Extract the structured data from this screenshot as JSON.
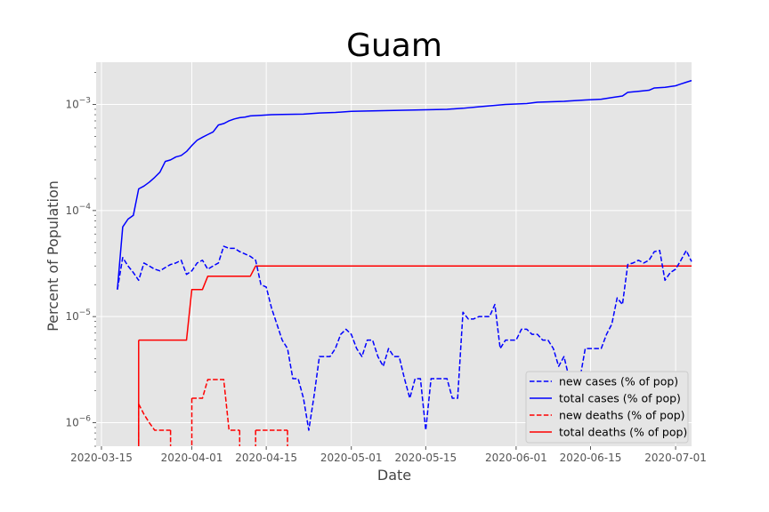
{
  "chart_data": {
    "type": "line",
    "title": "Guam",
    "xlabel": "Date",
    "ylabel": "Percent of Population",
    "yscale": "log",
    "ylim": [
      6e-07,
      0.0025
    ],
    "xlim": [
      "2020-03-14",
      "2020-07-04"
    ],
    "grid": true,
    "legend_position": "lower-right",
    "x_ticks": [
      "2020-03-15",
      "2020-04-01",
      "2020-04-15",
      "2020-05-01",
      "2020-05-15",
      "2020-06-01",
      "2020-06-15",
      "2020-07-01"
    ],
    "y_ticks": [
      {
        "value": 1e-06,
        "base": "10",
        "exp": "−6"
      },
      {
        "value": 1e-05,
        "base": "10",
        "exp": "−5"
      },
      {
        "value": 0.0001,
        "base": "10",
        "exp": "−4"
      },
      {
        "value": 0.001,
        "base": "10",
        "exp": "−3"
      }
    ],
    "series": [
      {
        "name": "new cases (% of pop)",
        "color": "#0000ff",
        "dash": "dashed",
        "points": [
          [
            "2020-03-18",
            1.8e-05
          ],
          [
            "2020-03-19",
            3.6e-05
          ],
          [
            "2020-03-20",
            3e-05
          ],
          [
            "2020-03-21",
            2.6e-05
          ],
          [
            "2020-03-22",
            2.2e-05
          ],
          [
            "2020-03-23",
            3.2e-05
          ],
          [
            "2020-03-24",
            3e-05
          ],
          [
            "2020-03-25",
            2.8e-05
          ],
          [
            "2020-03-26",
            2.7e-05
          ],
          [
            "2020-03-27",
            2.9e-05
          ],
          [
            "2020-03-28",
            3.1e-05
          ],
          [
            "2020-03-29",
            3.2e-05
          ],
          [
            "2020-03-30",
            3.4e-05
          ],
          [
            "2020-03-31",
            2.5e-05
          ],
          [
            "2020-04-01",
            2.7e-05
          ],
          [
            "2020-04-02",
            3.2e-05
          ],
          [
            "2020-04-03",
            3.4e-05
          ],
          [
            "2020-04-04",
            2.8e-05
          ],
          [
            "2020-04-05",
            3e-05
          ],
          [
            "2020-04-06",
            3.2e-05
          ],
          [
            "2020-04-07",
            4.6e-05
          ],
          [
            "2020-04-08",
            4.4e-05
          ],
          [
            "2020-04-09",
            4.4e-05
          ],
          [
            "2020-04-10",
            4.1e-05
          ],
          [
            "2020-04-11",
            3.9e-05
          ],
          [
            "2020-04-12",
            3.7e-05
          ],
          [
            "2020-04-13",
            3.4e-05
          ],
          [
            "2020-04-14",
            2e-05
          ],
          [
            "2020-04-15",
            1.9e-05
          ],
          [
            "2020-04-16",
            1.2e-05
          ],
          [
            "2020-04-17",
            8.5e-06
          ],
          [
            "2020-04-18",
            6e-06
          ],
          [
            "2020-04-19",
            5e-06
          ],
          [
            "2020-04-20",
            2.6e-06
          ],
          [
            "2020-04-21",
            2.6e-06
          ],
          [
            "2020-04-22",
            1.7e-06
          ],
          [
            "2020-04-23",
            8.5e-07
          ],
          [
            "2020-04-24",
            1.8e-06
          ],
          [
            "2020-04-25",
            4.2e-06
          ],
          [
            "2020-04-26",
            4.2e-06
          ],
          [
            "2020-04-27",
            4.2e-06
          ],
          [
            "2020-04-28",
            5e-06
          ],
          [
            "2020-04-29",
            6.8e-06
          ],
          [
            "2020-04-30",
            7.6e-06
          ],
          [
            "2020-05-01",
            6.8e-06
          ],
          [
            "2020-05-02",
            5e-06
          ],
          [
            "2020-05-03",
            4.2e-06
          ],
          [
            "2020-05-04",
            6e-06
          ],
          [
            "2020-05-05",
            6e-06
          ],
          [
            "2020-05-06",
            4.2e-06
          ],
          [
            "2020-05-07",
            3.4e-06
          ],
          [
            "2020-05-08",
            5e-06
          ],
          [
            "2020-05-09",
            4.2e-06
          ],
          [
            "2020-05-10",
            4.2e-06
          ],
          [
            "2020-05-11",
            2.6e-06
          ],
          [
            "2020-05-12",
            1.7e-06
          ],
          [
            "2020-05-13",
            2.6e-06
          ],
          [
            "2020-05-14",
            2.6e-06
          ],
          [
            "2020-05-15",
            8.5e-07
          ],
          [
            "2020-05-16",
            2.6e-06
          ],
          [
            "2020-05-17",
            2.6e-06
          ],
          [
            "2020-05-18",
            2.6e-06
          ],
          [
            "2020-05-19",
            2.6e-06
          ],
          [
            "2020-05-20",
            1.7e-06
          ],
          [
            "2020-05-21",
            1.7e-06
          ],
          [
            "2020-05-22",
            1.1e-05
          ],
          [
            "2020-05-23",
            9.5e-06
          ],
          [
            "2020-05-24",
            9.5e-06
          ],
          [
            "2020-05-25",
            1e-05
          ],
          [
            "2020-05-26",
            1e-05
          ],
          [
            "2020-05-27",
            1e-05
          ],
          [
            "2020-05-28",
            1.3e-05
          ],
          [
            "2020-05-29",
            5e-06
          ],
          [
            "2020-05-30",
            6e-06
          ],
          [
            "2020-05-31",
            6e-06
          ],
          [
            "2020-06-01",
            6e-06
          ],
          [
            "2020-06-02",
            7.6e-06
          ],
          [
            "2020-06-03",
            7.6e-06
          ],
          [
            "2020-06-04",
            6.8e-06
          ],
          [
            "2020-06-05",
            6.8e-06
          ],
          [
            "2020-06-06",
            6e-06
          ],
          [
            "2020-06-07",
            6e-06
          ],
          [
            "2020-06-08",
            5e-06
          ],
          [
            "2020-06-09",
            3.4e-06
          ],
          [
            "2020-06-10",
            4.2e-06
          ],
          [
            "2020-06-11",
            2.6e-06
          ],
          [
            "2020-06-12",
            2.6e-06
          ],
          [
            "2020-06-13",
            2.6e-06
          ],
          [
            "2020-06-14",
            5e-06
          ],
          [
            "2020-06-15",
            5e-06
          ],
          [
            "2020-06-16",
            5e-06
          ],
          [
            "2020-06-17",
            5e-06
          ],
          [
            "2020-06-18",
            6.8e-06
          ],
          [
            "2020-06-19",
            8.5e-06
          ],
          [
            "2020-06-20",
            1.5e-05
          ],
          [
            "2020-06-21",
            1.3e-05
          ],
          [
            "2020-06-22",
            3.1e-05
          ],
          [
            "2020-06-23",
            3.2e-05
          ],
          [
            "2020-06-24",
            3.4e-05
          ],
          [
            "2020-06-25",
            3.2e-05
          ],
          [
            "2020-06-26",
            3.4e-05
          ],
          [
            "2020-06-27",
            4.1e-05
          ],
          [
            "2020-06-28",
            4.2e-05
          ],
          [
            "2020-06-29",
            2.2e-05
          ],
          [
            "2020-06-30",
            2.6e-05
          ],
          [
            "2020-07-01",
            2.8e-05
          ],
          [
            "2020-07-02",
            3.4e-05
          ],
          [
            "2020-07-03",
            4.2e-05
          ],
          [
            "2020-07-04",
            3.3e-05
          ]
        ]
      },
      {
        "name": "total cases (% of pop)",
        "color": "#0000ff",
        "dash": "solid",
        "points": [
          [
            "2020-03-18",
            1.8e-05
          ],
          [
            "2020-03-19",
            7e-05
          ],
          [
            "2020-03-20",
            8.3e-05
          ],
          [
            "2020-03-21",
            9e-05
          ],
          [
            "2020-03-22",
            0.00016
          ],
          [
            "2020-03-23",
            0.00017
          ],
          [
            "2020-03-24",
            0.000185
          ],
          [
            "2020-03-25",
            0.000205
          ],
          [
            "2020-03-26",
            0.00023
          ],
          [
            "2020-03-27",
            0.00029
          ],
          [
            "2020-03-28",
            0.0003
          ],
          [
            "2020-03-29",
            0.00032
          ],
          [
            "2020-03-30",
            0.00033
          ],
          [
            "2020-03-31",
            0.00036
          ],
          [
            "2020-04-01",
            0.00041
          ],
          [
            "2020-04-02",
            0.00046
          ],
          [
            "2020-04-03",
            0.00049
          ],
          [
            "2020-04-04",
            0.00052
          ],
          [
            "2020-04-05",
            0.00055
          ],
          [
            "2020-04-06",
            0.00064
          ],
          [
            "2020-04-07",
            0.00066
          ],
          [
            "2020-04-08",
            0.0007
          ],
          [
            "2020-04-09",
            0.00073
          ],
          [
            "2020-04-10",
            0.00075
          ],
          [
            "2020-04-11",
            0.00076
          ],
          [
            "2020-04-12",
            0.00078
          ],
          [
            "2020-04-14",
            0.00079
          ],
          [
            "2020-04-16",
            0.0008
          ],
          [
            "2020-04-18",
            0.000805
          ],
          [
            "2020-04-22",
            0.00081
          ],
          [
            "2020-04-25",
            0.00083
          ],
          [
            "2020-04-28",
            0.00084
          ],
          [
            "2020-05-01",
            0.00086
          ],
          [
            "2020-05-05",
            0.00087
          ],
          [
            "2020-05-10",
            0.00088
          ],
          [
            "2020-05-15",
            0.00089
          ],
          [
            "2020-05-19",
            0.0009
          ],
          [
            "2020-05-22",
            0.00092
          ],
          [
            "2020-05-25",
            0.00095
          ],
          [
            "2020-05-30",
            0.001
          ],
          [
            "2020-06-03",
            0.00102
          ],
          [
            "2020-06-05",
            0.00105
          ],
          [
            "2020-06-10",
            0.00107
          ],
          [
            "2020-06-14",
            0.0011
          ],
          [
            "2020-06-17",
            0.00112
          ],
          [
            "2020-06-19",
            0.00116
          ],
          [
            "2020-06-21",
            0.0012
          ],
          [
            "2020-06-22",
            0.0013
          ],
          [
            "2020-06-24",
            0.00133
          ],
          [
            "2020-06-26",
            0.00136
          ],
          [
            "2020-06-27",
            0.00143
          ],
          [
            "2020-06-29",
            0.00145
          ],
          [
            "2020-07-01",
            0.0015
          ],
          [
            "2020-07-02",
            0.00156
          ],
          [
            "2020-07-03",
            0.00162
          ],
          [
            "2020-07-04",
            0.00168
          ]
        ]
      },
      {
        "name": "new deaths (% of pop)",
        "color": "#ff0000",
        "dash": "dashed",
        "segments": [
          [
            [
              "2020-03-22",
              1.5e-06
            ],
            [
              "2020-03-23",
              1.2e-06
            ],
            [
              "2020-03-24",
              1e-06
            ],
            [
              "2020-03-25",
              8.5e-07
            ],
            [
              "2020-03-26",
              8.5e-07
            ],
            [
              "2020-03-27",
              8.5e-07
            ],
            [
              "2020-03-28",
              8.5e-07
            ]
          ],
          [
            [
              "2020-04-01",
              1.7e-06
            ],
            [
              "2020-04-02",
              1.7e-06
            ],
            [
              "2020-04-03",
              1.7e-06
            ],
            [
              "2020-04-04",
              2.55e-06
            ],
            [
              "2020-04-05",
              2.55e-06
            ],
            [
              "2020-04-06",
              2.55e-06
            ],
            [
              "2020-04-07",
              2.55e-06
            ],
            [
              "2020-04-08",
              8.5e-07
            ],
            [
              "2020-04-09",
              8.5e-07
            ],
            [
              "2020-04-10",
              8.5e-07
            ]
          ],
          [
            [
              "2020-04-13",
              8.5e-07
            ],
            [
              "2020-04-14",
              8.5e-07
            ],
            [
              "2020-04-15",
              8.5e-07
            ],
            [
              "2020-04-16",
              8.5e-07
            ],
            [
              "2020-04-17",
              8.5e-07
            ],
            [
              "2020-04-18",
              8.5e-07
            ],
            [
              "2020-04-19",
              8.5e-07
            ]
          ]
        ],
        "dropouts": [
          "2020-03-22",
          "2020-03-28",
          "2020-04-01",
          "2020-04-10",
          "2020-04-13",
          "2020-04-19"
        ]
      },
      {
        "name": "total deaths (% of pop)",
        "color": "#ff0000",
        "dash": "solid",
        "points": [
          [
            "2020-03-22",
            6e-06
          ],
          [
            "2020-03-31",
            6e-06
          ],
          [
            "2020-04-01",
            1.8e-05
          ],
          [
            "2020-04-03",
            1.8e-05
          ],
          [
            "2020-04-04",
            2.4e-05
          ],
          [
            "2020-04-12",
            2.4e-05
          ],
          [
            "2020-04-13",
            3e-05
          ],
          [
            "2020-07-04",
            3e-05
          ]
        ],
        "dropout": "2020-03-22"
      }
    ]
  }
}
